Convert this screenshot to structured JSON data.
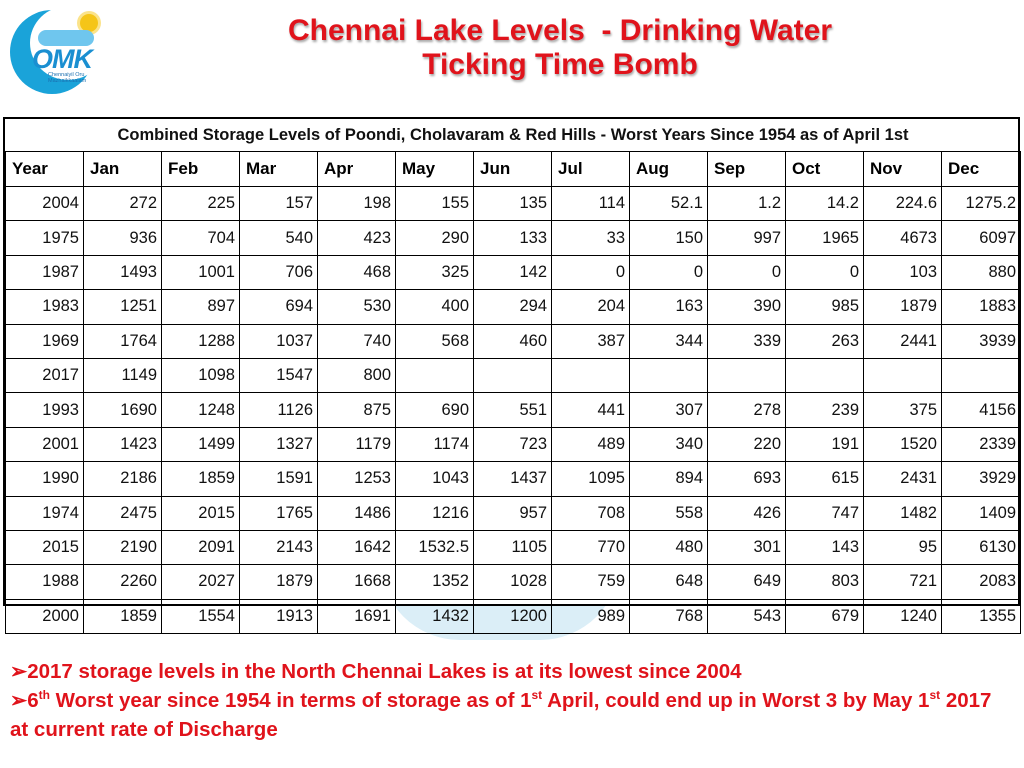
{
  "logo": {
    "word": "OMK",
    "tagline": "Chennaiyil Oru Mazhaikkaalam"
  },
  "title": {
    "line1": "Chennai Lake Levels  - Drinking Water",
    "line2": "Ticking Time Bomb"
  },
  "table": {
    "caption": "Combined Storage Levels of Poondi, Cholavaram & Red Hills - Worst Years Since 1954 as of April 1st",
    "columns": [
      "Year",
      "Jan",
      "Feb",
      "Mar",
      "Apr",
      "May",
      "Jun",
      "Jul",
      "Aug",
      "Sep",
      "Oct",
      "Nov",
      "Dec"
    ],
    "rows": [
      [
        "2004",
        "272",
        "225",
        "157",
        "198",
        "155",
        "135",
        "114",
        "52.1",
        "1.2",
        "14.2",
        "224.6",
        "1275.2"
      ],
      [
        "1975",
        "936",
        "704",
        "540",
        "423",
        "290",
        "133",
        "33",
        "150",
        "997",
        "1965",
        "4673",
        "6097"
      ],
      [
        "1987",
        "1493",
        "1001",
        "706",
        "468",
        "325",
        "142",
        "0",
        "0",
        "0",
        "0",
        "103",
        "880"
      ],
      [
        "1983",
        "1251",
        "897",
        "694",
        "530",
        "400",
        "294",
        "204",
        "163",
        "390",
        "985",
        "1879",
        "1883"
      ],
      [
        "1969",
        "1764",
        "1288",
        "1037",
        "740",
        "568",
        "460",
        "387",
        "344",
        "339",
        "263",
        "2441",
        "3939"
      ],
      [
        "2017",
        "1149",
        "1098",
        "1547",
        "800",
        "",
        "",
        "",
        "",
        "",
        "",
        "",
        ""
      ],
      [
        "1993",
        "1690",
        "1248",
        "1126",
        "875",
        "690",
        "551",
        "441",
        "307",
        "278",
        "239",
        "375",
        "4156"
      ],
      [
        "2001",
        "1423",
        "1499",
        "1327",
        "1179",
        "1174",
        "723",
        "489",
        "340",
        "220",
        "191",
        "1520",
        "2339"
      ],
      [
        "1990",
        "2186",
        "1859",
        "1591",
        "1253",
        "1043",
        "1437",
        "1095",
        "894",
        "693",
        "615",
        "2431",
        "3929"
      ],
      [
        "1974",
        "2475",
        "2015",
        "1765",
        "1486",
        "1216",
        "957",
        "708",
        "558",
        "426",
        "747",
        "1482",
        "1409"
      ],
      [
        "2015",
        "2190",
        "2091",
        "2143",
        "1642",
        "1532.5",
        "1105",
        "770",
        "480",
        "301",
        "143",
        "95",
        "6130"
      ],
      [
        "1988",
        "2260",
        "2027",
        "1879",
        "1668",
        "1352",
        "1028",
        "759",
        "648",
        "649",
        "803",
        "721",
        "2083"
      ],
      [
        "2000",
        "1859",
        "1554",
        "1913",
        "1691",
        "1432",
        "1200",
        "989",
        "768",
        "543",
        "679",
        "1240",
        "1355"
      ]
    ]
  },
  "bullets": {
    "arrow": "➢",
    "b1": "2017 storage levels in the North Chennai Lakes is at its lowest since 2004",
    "b2_part1": "6",
    "b2_sup1": "th",
    "b2_part2": " Worst year since 1954 in terms of storage as of 1",
    "b2_sup2": "st",
    "b2_part3": " April, could end up in Worst 3 by May 1",
    "b2_sup3": "st",
    "b2_part4": " 2017 at current rate of Discharge"
  },
  "colors": {
    "title": "#e0131b",
    "bullets": "#e0131b",
    "logo": "#1aa3d9"
  }
}
